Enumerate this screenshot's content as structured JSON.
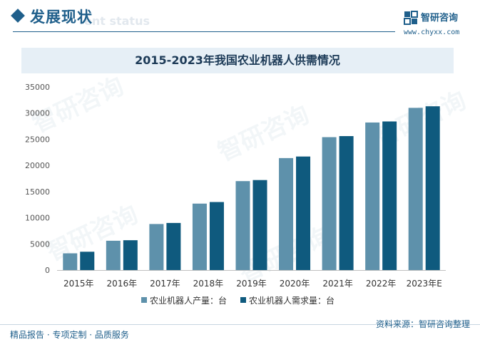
{
  "header": {
    "section_title": "发展现状",
    "section_subtitle": "ent status",
    "logo_text": "智研咨询",
    "logo_url": "www.chyxx.com"
  },
  "watermark_text": "智研咨询",
  "colors": {
    "brand": "#1f5f8b",
    "series_production": "#5e91ab",
    "series_demand": "#0f5a7e",
    "title_bar": "#e6eff6"
  },
  "chart_data": {
    "type": "bar",
    "title": "2015-2023年我国农业机器人供需情况",
    "categories": [
      "2015年",
      "2016年",
      "2017年",
      "2018年",
      "2019年",
      "2020年",
      "2021年",
      "2022年",
      "2023年E"
    ],
    "series": [
      {
        "name": "农业机器人产量：台",
        "color": "#5e91ab",
        "values": [
          3200,
          5600,
          8800,
          12700,
          17000,
          21400,
          25400,
          28200,
          31000
        ]
      },
      {
        "name": "农业机器人需求量：台",
        "color": "#0f5a7e",
        "values": [
          3500,
          5700,
          9000,
          13000,
          17200,
          21700,
          25600,
          28400,
          31300
        ]
      }
    ],
    "ylim": [
      0,
      35000
    ],
    "yticks": [
      "0",
      "5000",
      "10000",
      "15000",
      "20000",
      "25000",
      "30000",
      "35000"
    ],
    "grid": false,
    "legend_position": "bottom"
  },
  "footer": {
    "left": "精品报告 · 专项定制 · 品质服务",
    "source": "资料来源：智研咨询整理"
  }
}
